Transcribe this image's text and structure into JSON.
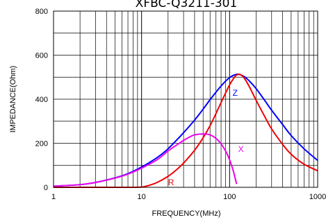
{
  "chart_data": {
    "type": "line",
    "title": "XFBC-Q3211-301",
    "xlabel": "FREQUENCY(MHz)",
    "ylabel": "IMPEDANCE(Ohm)",
    "x_scale": "log",
    "xlim": [
      1,
      1000
    ],
    "ylim": [
      0,
      800
    ],
    "x_ticks": [
      1,
      10,
      100,
      1000
    ],
    "x_tick_labels": [
      "1",
      "10",
      "100",
      "1000"
    ],
    "y_ticks": [
      0,
      200,
      400,
      600,
      800
    ],
    "y_tick_labels": [
      "0",
      "200",
      "400",
      "600",
      "800"
    ],
    "grid": true,
    "series": [
      {
        "name": "Z",
        "color": "#0000ff",
        "x": [
          1,
          2,
          3,
          5,
          7,
          10,
          15,
          20,
          30,
          40,
          50,
          60,
          70,
          80,
          90,
          100,
          110,
          120,
          130,
          140,
          150,
          170,
          200,
          250,
          300,
          400,
          500,
          700,
          1000
        ],
        "y": [
          5,
          12,
          22,
          43,
          62,
          92,
          135,
          175,
          248,
          305,
          355,
          398,
          432,
          460,
          482,
          498,
          508,
          513,
          512,
          507,
          500,
          480,
          448,
          395,
          350,
          285,
          235,
          175,
          122
        ]
      },
      {
        "name": "R",
        "color": "#ee0000",
        "x": [
          1,
          3,
          5,
          8,
          10,
          12,
          15,
          20,
          25,
          30,
          40,
          50,
          60,
          70,
          80,
          90,
          100,
          110,
          120,
          130,
          140,
          150,
          170,
          200,
          250,
          300,
          400,
          500,
          700,
          1000
        ],
        "y": [
          0,
          0,
          0,
          0,
          1,
          8,
          22,
          50,
          80,
          110,
          168,
          225,
          280,
          335,
          385,
          428,
          465,
          492,
          510,
          513,
          505,
          490,
          452,
          395,
          322,
          265,
          195,
          150,
          105,
          75
        ]
      },
      {
        "name": "X",
        "color": "#ee00ee",
        "x": [
          1,
          2,
          3,
          5,
          7,
          10,
          15,
          20,
          25,
          30,
          35,
          40,
          50,
          60,
          70,
          80,
          90,
          100,
          110,
          120
        ],
        "y": [
          5,
          12,
          22,
          42,
          60,
          87,
          125,
          165,
          192,
          213,
          228,
          238,
          242,
          238,
          222,
          197,
          165,
          125,
          75,
          15
        ]
      }
    ]
  }
}
